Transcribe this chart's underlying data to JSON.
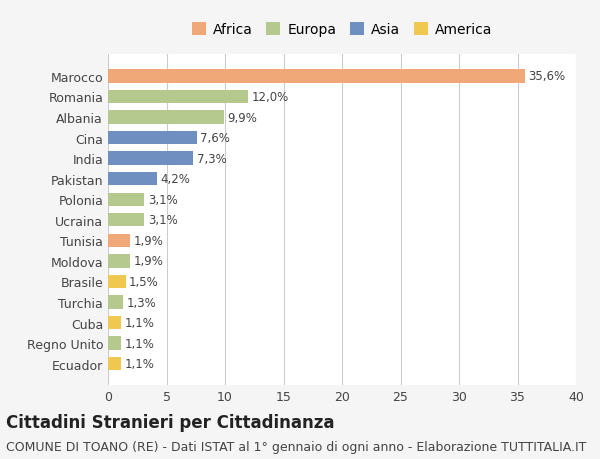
{
  "countries": [
    "Marocco",
    "Romania",
    "Albania",
    "Cina",
    "India",
    "Pakistan",
    "Polonia",
    "Ucraina",
    "Tunisia",
    "Moldova",
    "Brasile",
    "Turchia",
    "Cuba",
    "Regno Unito",
    "Ecuador"
  ],
  "values": [
    35.6,
    12.0,
    9.9,
    7.6,
    7.3,
    4.2,
    3.1,
    3.1,
    1.9,
    1.9,
    1.5,
    1.3,
    1.1,
    1.1,
    1.1
  ],
  "labels": [
    "35,6%",
    "12,0%",
    "9,9%",
    "7,6%",
    "7,3%",
    "4,2%",
    "3,1%",
    "3,1%",
    "1,9%",
    "1,9%",
    "1,5%",
    "1,3%",
    "1,1%",
    "1,1%",
    "1,1%"
  ],
  "continents": [
    "Africa",
    "Europa",
    "Europa",
    "Asia",
    "Asia",
    "Asia",
    "Europa",
    "Europa",
    "Africa",
    "Europa",
    "America",
    "Europa",
    "America",
    "Europa",
    "America"
  ],
  "colors": {
    "Africa": "#F0A878",
    "Europa": "#B5C98E",
    "Asia": "#6E8FC0",
    "America": "#F0C850"
  },
  "legend_order": [
    "Africa",
    "Europa",
    "Asia",
    "America"
  ],
  "xlim": [
    0,
    40
  ],
  "xticks": [
    0,
    5,
    10,
    15,
    20,
    25,
    30,
    35,
    40
  ],
  "title": "Cittadini Stranieri per Cittadinanza",
  "subtitle": "COMUNE DI TOANO (RE) - Dati ISTAT al 1° gennaio di ogni anno - Elaborazione TUTTITALIA.IT",
  "background_color": "#f5f5f5",
  "bar_background": "#ffffff",
  "title_fontsize": 12,
  "subtitle_fontsize": 9,
  "label_fontsize": 8.5,
  "tick_fontsize": 9
}
